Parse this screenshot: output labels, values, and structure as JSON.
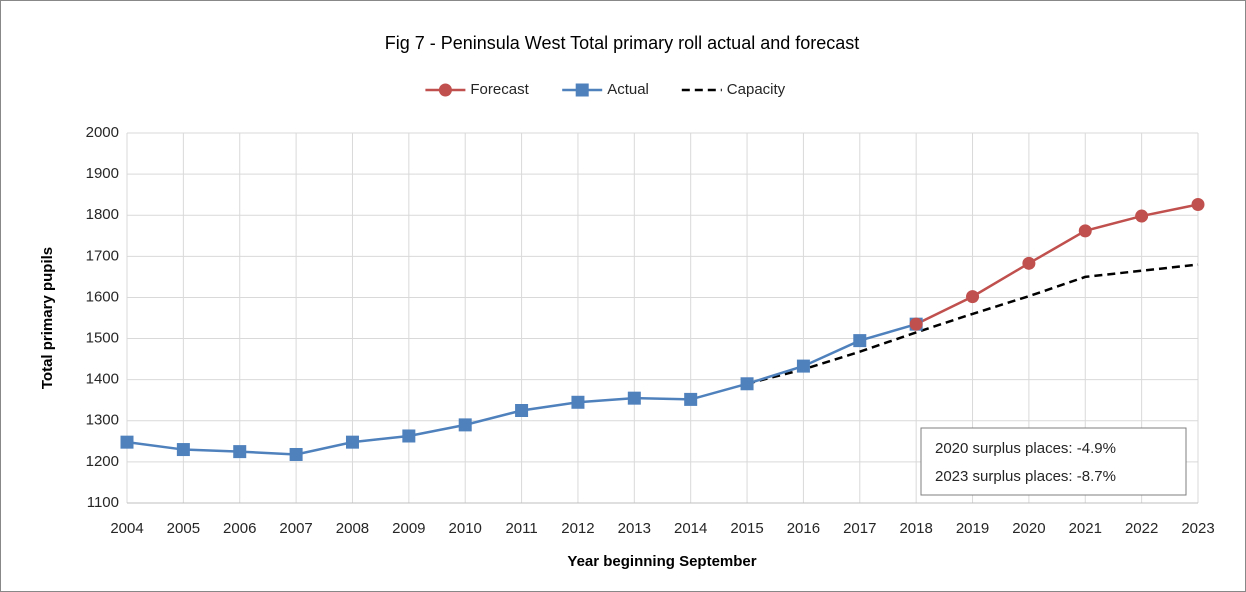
{
  "chart_data": {
    "type": "line",
    "title": "Fig 7 - Peninsula West Total primary roll actual and forecast",
    "x_label": "Year beginning September",
    "y_label": "Total primary pupils",
    "x": [
      2004,
      2005,
      2006,
      2007,
      2008,
      2009,
      2010,
      2011,
      2012,
      2013,
      2014,
      2015,
      2016,
      2017,
      2018,
      2019,
      2020,
      2021,
      2022,
      2023
    ],
    "xlim": [
      2004,
      2023
    ],
    "xticks": [
      2004,
      2005,
      2006,
      2007,
      2008,
      2009,
      2010,
      2011,
      2012,
      2013,
      2014,
      2015,
      2016,
      2017,
      2018,
      2019,
      2020,
      2021,
      2022,
      2023
    ],
    "ylim": [
      1100,
      2000
    ],
    "yticks": [
      1100,
      1200,
      1300,
      1400,
      1500,
      1600,
      1700,
      1800,
      1900,
      2000
    ],
    "grid": true,
    "legend": "top",
    "series": [
      {
        "name": "Forecast",
        "color": "#c0504d",
        "marker": "circle",
        "dash": false,
        "values": [
          null,
          null,
          null,
          null,
          null,
          null,
          null,
          null,
          null,
          null,
          null,
          null,
          null,
          null,
          1535,
          1602,
          1683,
          1762,
          1798,
          1826
        ]
      },
      {
        "name": "Actual",
        "color": "#4f81bd",
        "marker": "square",
        "dash": false,
        "values": [
          1248,
          1230,
          1225,
          1218,
          1248,
          1263,
          1290,
          1325,
          1345,
          1355,
          1352,
          1390,
          1433,
          1495,
          1535,
          null,
          null,
          null,
          null,
          null
        ]
      },
      {
        "name": "Capacity",
        "color": "#000000",
        "marker": "none",
        "dash": true,
        "values": [
          null,
          null,
          null,
          null,
          null,
          null,
          null,
          null,
          null,
          null,
          null,
          1390,
          1425,
          1468,
          1515,
          1560,
          1603,
          1650,
          1665,
          1680
        ]
      }
    ],
    "annotations": [
      "2020 surplus places: -4.9%",
      "2023 surplus places: -8.7%"
    ]
  }
}
